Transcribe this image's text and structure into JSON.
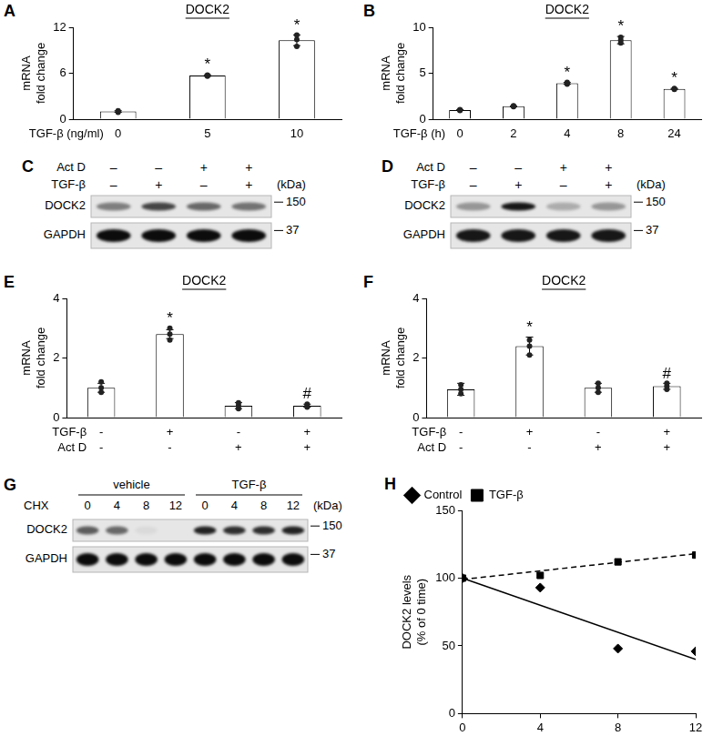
{
  "chart_data": [
    {
      "type": "bar",
      "panel_label": "A",
      "title": "DOCK2",
      "y_label": [
        "mRNA",
        "fold change"
      ],
      "x_label": "TGF-β (ng/ml)",
      "categories": [
        "0",
        "5",
        "10"
      ],
      "values": [
        1,
        5.7,
        10.3
      ],
      "errors": [
        0.1,
        0.1,
        0.7
      ],
      "points": [
        [
          0.9,
          1.0,
          1.1
        ],
        [
          5.6,
          5.7,
          5.75
        ],
        [
          9.5,
          10.4,
          11.0
        ]
      ],
      "significance": [
        null,
        "*",
        "*"
      ],
      "color": "#ffffff",
      "ylim": [
        0,
        12
      ],
      "yticks": [
        0,
        6,
        12
      ],
      "grid": false
    },
    {
      "type": "bar",
      "panel_label": "B",
      "title": "DOCK2",
      "y_label": [
        "mRNA",
        "fold change"
      ],
      "x_label": "TGF-β (h)",
      "categories": [
        "0",
        "2",
        "4",
        "8",
        "24"
      ],
      "values": [
        1,
        1.4,
        3.9,
        8.6,
        3.3
      ],
      "errors": [
        0.05,
        0.05,
        0.1,
        0.4,
        0.05
      ],
      "points": [
        [
          0.95,
          1.0,
          1.05
        ],
        [
          1.35,
          1.4,
          1.45
        ],
        [
          3.8,
          3.9,
          4.0
        ],
        [
          8.3,
          8.6,
          8.9
        ],
        [
          3.25,
          3.3,
          3.35
        ]
      ],
      "significance": [
        null,
        null,
        "*",
        "*",
        "*"
      ],
      "color": "#ffffff",
      "ylim": [
        0,
        10
      ],
      "yticks": [
        0,
        5,
        10
      ],
      "grid": false
    },
    {
      "type": "bar",
      "panel_label": "E",
      "title": "DOCK2",
      "y_label": [
        "mRNA",
        "fold change"
      ],
      "category_rows": [
        "TGF-β",
        "Act D"
      ],
      "categories": [
        [
          "-",
          "-"
        ],
        [
          "+",
          "-"
        ],
        [
          "-",
          "+"
        ],
        [
          "+",
          "+"
        ]
      ],
      "values": [
        1,
        2.8,
        0.4,
        0.4
      ],
      "errors": [
        0.15,
        0.15,
        0.1,
        0.05
      ],
      "points": [
        [
          0.85,
          1.0,
          1.2
        ],
        [
          2.6,
          2.8,
          3.0
        ],
        [
          0.3,
          0.4,
          0.5
        ],
        [
          0.35,
          0.4,
          0.45
        ]
      ],
      "significance": [
        null,
        "*",
        null,
        "#"
      ],
      "color": "#ffffff",
      "ylim": [
        0,
        4
      ],
      "yticks": [
        0,
        2,
        4
      ],
      "grid": false
    },
    {
      "type": "bar",
      "panel_label": "F",
      "title": "DOCK2",
      "y_label": [
        "mRNA",
        "fold change"
      ],
      "category_rows": [
        "TGF-β",
        "Act D"
      ],
      "categories": [
        [
          "-",
          "-"
        ],
        [
          "+",
          "-"
        ],
        [
          "-",
          "+"
        ],
        [
          "+",
          "+"
        ]
      ],
      "values": [
        0.95,
        2.4,
        1.0,
        1.05
      ],
      "errors": [
        0.2,
        0.3,
        0.15,
        0.1
      ],
      "points": [
        [
          0.8,
          0.95,
          1.1
        ],
        [
          2.1,
          2.4,
          2.6
        ],
        [
          0.85,
          1.0,
          1.15
        ],
        [
          0.95,
          1.05,
          1.15
        ]
      ],
      "significance": [
        null,
        "*",
        null,
        "#"
      ],
      "color": "#ffffff",
      "ylim": [
        0,
        4
      ],
      "yticks": [
        0,
        2,
        4
      ],
      "grid": false
    },
    {
      "type": "scatter",
      "panel_label": "H",
      "y_label": [
        "DOCK2 levels",
        "(% of 0 time)"
      ],
      "xlim": [
        0,
        12
      ],
      "xticks": [
        0,
        4,
        8,
        12
      ],
      "ylim": [
        0,
        150
      ],
      "yticks": [
        0,
        50,
        100,
        150
      ],
      "grid": false,
      "legend": "top-left",
      "series": [
        {
          "name": "Control",
          "color": "#000000",
          "marker": "diamond",
          "line_style": "solid",
          "x": [
            0,
            4,
            8,
            12
          ],
          "values": [
            100,
            93,
            48,
            46
          ],
          "trend": {
            "x": [
              0,
              12
            ],
            "values": [
              100,
              40
            ]
          }
        },
        {
          "name": "TGF-β",
          "color": "#000000",
          "marker": "square",
          "line_style": "dashed",
          "x": [
            0,
            4,
            8,
            12
          ],
          "values": [
            100,
            102,
            112,
            117
          ],
          "trend": {
            "x": [
              0,
              12
            ],
            "values": [
              99,
              118
            ]
          }
        }
      ]
    }
  ],
  "blots": [
    {
      "panel_label": "C",
      "unit": "(kDa)",
      "header_rows": [
        {
          "name": "Act D",
          "values": [
            "–",
            "–",
            "+",
            "+"
          ]
        },
        {
          "name": "TGF-β",
          "values": [
            "–",
            "+",
            "–",
            "+"
          ]
        }
      ],
      "bands": [
        {
          "name": "DOCK2",
          "marker": 150,
          "intensity": [
            0.45,
            0.7,
            0.55,
            0.5
          ]
        },
        {
          "name": "GAPDH",
          "marker": 37,
          "intensity": [
            0.95,
            0.95,
            0.95,
            0.95
          ]
        }
      ]
    },
    {
      "panel_label": "D",
      "unit": "(kDa)",
      "header_rows": [
        {
          "name": "Act D",
          "values": [
            "–",
            "–",
            "+",
            "+"
          ]
        },
        {
          "name": "TGF-β",
          "values": [
            "–",
            "+",
            "–",
            "+"
          ]
        }
      ],
      "bands": [
        {
          "name": "DOCK2",
          "marker": 150,
          "intensity": [
            0.35,
            0.9,
            0.25,
            0.35
          ]
        },
        {
          "name": "GAPDH",
          "marker": 37,
          "intensity": [
            0.9,
            0.9,
            0.9,
            0.9
          ]
        }
      ]
    },
    {
      "panel_label": "G",
      "unit": "(kDa)",
      "group_rows": {
        "name": "CHX",
        "groups": [
          {
            "label": "vehicle",
            "values": [
              0,
              4,
              8,
              12
            ]
          },
          {
            "label": "TGF-β",
            "values": [
              0,
              4,
              8,
              12
            ]
          }
        ]
      },
      "bands": [
        {
          "name": "DOCK2",
          "marker": 150,
          "intensity": [
            0.6,
            0.55,
            0.05,
            0,
            0.85,
            0.8,
            0.8,
            0.85
          ]
        },
        {
          "name": "GAPDH",
          "marker": 37,
          "intensity": [
            0.95,
            0.95,
            0.95,
            0.95,
            0.95,
            0.95,
            0.95,
            0.95
          ]
        }
      ]
    }
  ]
}
